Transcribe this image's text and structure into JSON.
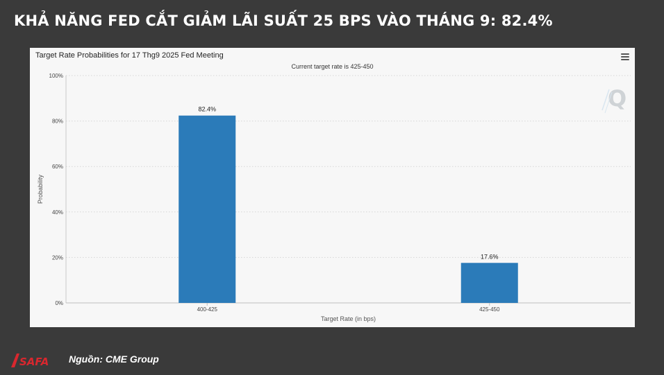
{
  "headline": "KHẢ NĂNG FED CẮT GIẢM LÃI SUẤT 25 BPS VÀO THÁNG 9: 82.4%",
  "footer": {
    "source": "Nguồn: CME Group",
    "logo_text": "SAFA"
  },
  "colors": {
    "background": "#3a3a3a",
    "bar": "#2b7bb9",
    "logo": "#d9272e"
  },
  "chart_data": {
    "type": "bar",
    "title": "Target Rate Probabilities for 17 Thg9 2025 Fed Meeting",
    "subtitle": "Current target rate is 425-450",
    "xlabel": "Target Rate (in bps)",
    "ylabel": "Probability",
    "categories": [
      "400-425",
      "425-450"
    ],
    "values": [
      82.4,
      17.6
    ],
    "data_labels": [
      "82.4%",
      "17.6%"
    ],
    "ylim": [
      0,
      100
    ],
    "yticks": [
      0,
      20,
      40,
      60,
      80,
      100
    ],
    "ytick_labels": [
      "0%",
      "20%",
      "40%",
      "60%",
      "80%",
      "100%"
    ],
    "grid": true,
    "legend": "none"
  }
}
